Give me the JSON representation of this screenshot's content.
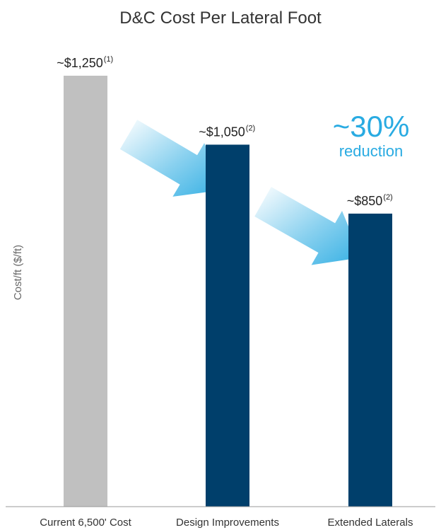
{
  "chart_data": {
    "type": "bar",
    "title": "D&C Cost Per Lateral Foot",
    "xlabel": "",
    "ylabel": "Cost/ft ($/ft)",
    "categories": [
      "Current 6,500' Cost",
      "Design Improvements",
      "Extended Laterals"
    ],
    "values": [
      1250,
      1050,
      850
    ],
    "value_labels": [
      "~$1,250",
      "~$1,050",
      "~$850"
    ],
    "footnotes": [
      "(1)",
      "(2)",
      "(2)"
    ],
    "bar_colors": [
      "#c0c0c0",
      "#003f6b",
      "#003f6b"
    ],
    "ylim": [
      0,
      1250
    ],
    "grid": false,
    "annotation": {
      "percent": "~30%",
      "text": "reduction",
      "color": "#29abe2"
    },
    "arrow_color": "#29abe2"
  }
}
